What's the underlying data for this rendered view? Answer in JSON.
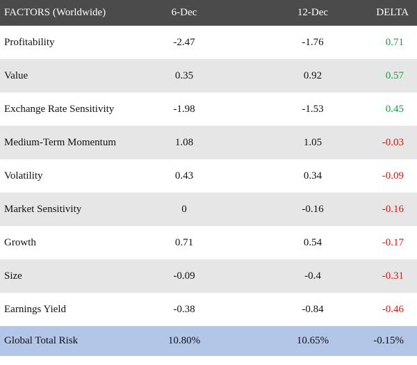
{
  "headers": [
    "FACTORS (Worldwide)",
    "6-Dec",
    "12-Dec",
    "DELTA"
  ],
  "rows": [
    {
      "factor": "Profitability",
      "dec6": "-2.47",
      "dec12": "-1.76",
      "delta": "0.71",
      "delta_color": "positive-green"
    },
    {
      "factor": "Value",
      "dec6": "0.35",
      "dec12": "0.92",
      "delta": "0.57",
      "delta_color": "positive-green"
    },
    {
      "factor": "Exchange Rate Sensitivity",
      "dec6": "-1.98",
      "dec12": "-1.53",
      "delta": "0.45",
      "delta_color": "positive-green"
    },
    {
      "factor": "Medium-Term Momentum",
      "dec6": "1.08",
      "dec12": "1.05",
      "delta": "-0.03",
      "delta_color": "negative-red"
    },
    {
      "factor": "Volatility",
      "dec6": "0.43",
      "dec12": "0.34",
      "delta": "-0.09",
      "delta_color": "negative-red"
    },
    {
      "factor": "Market Sensitivity",
      "dec6": "0",
      "dec12": "-0.16",
      "delta": "-0.16",
      "delta_color": "negative-red"
    },
    {
      "factor": "Growth",
      "dec6": "0.71",
      "dec12": "0.54",
      "delta": "-0.17",
      "delta_color": "negative-red"
    },
    {
      "factor": "Size",
      "dec6": "-0.09",
      "dec12": "-0.4",
      "delta": "-0.31",
      "delta_color": "negative-red"
    },
    {
      "factor": "Earnings Yield",
      "dec6": "-0.38",
      "dec12": "-0.84",
      "delta": "-0.46",
      "delta_color": "negative-red"
    }
  ],
  "total": {
    "factor": "Global Total Risk",
    "dec6": "10.80%",
    "dec12": "10.65%",
    "delta": "-0.15%"
  },
  "colors": {
    "header_bg": "#4b4b4b",
    "stripe_bg": "#e6e6e6",
    "total_bg": "#b4c6e7",
    "positive": "#1e9a48",
    "negative": "#e01010"
  }
}
